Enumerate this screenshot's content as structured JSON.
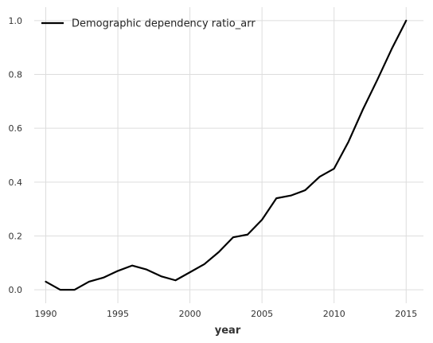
{
  "chart_data": {
    "type": "line",
    "title": "",
    "xlabel": "year",
    "ylabel": "",
    "xlim": [
      1989.2,
      2016.2
    ],
    "ylim": [
      -0.05,
      1.05
    ],
    "xticks": [
      1990,
      1995,
      2000,
      2005,
      2010,
      2015
    ],
    "yticks": [
      0.0,
      0.2,
      0.4,
      0.6,
      0.8,
      1.0
    ],
    "xtick_labels": [
      "1990",
      "1995",
      "2000",
      "2005",
      "2010",
      "2015"
    ],
    "ytick_labels": [
      "0.0",
      "0.2",
      "0.4",
      "0.6",
      "0.8",
      "1.0"
    ],
    "grid": true,
    "legend_position": "top-left",
    "colors": {
      "series": "#000000",
      "grid": "#dddddd"
    },
    "x": [
      1990,
      1991,
      1992,
      1993,
      1994,
      1995,
      1996,
      1997,
      1998,
      1999,
      2000,
      2001,
      2002,
      2003,
      2004,
      2005,
      2006,
      2007,
      2008,
      2009,
      2010,
      2011,
      2012,
      2013,
      2014,
      2015
    ],
    "series": [
      {
        "name": "Demographic dependency ratio_arr",
        "values": [
          0.03,
          0.0,
          0.0,
          0.03,
          0.045,
          0.07,
          0.09,
          0.075,
          0.05,
          0.035,
          0.065,
          0.095,
          0.14,
          0.195,
          0.205,
          0.26,
          0.34,
          0.35,
          0.37,
          0.42,
          0.45,
          0.55,
          0.67,
          0.78,
          0.895,
          1.0
        ]
      }
    ]
  }
}
